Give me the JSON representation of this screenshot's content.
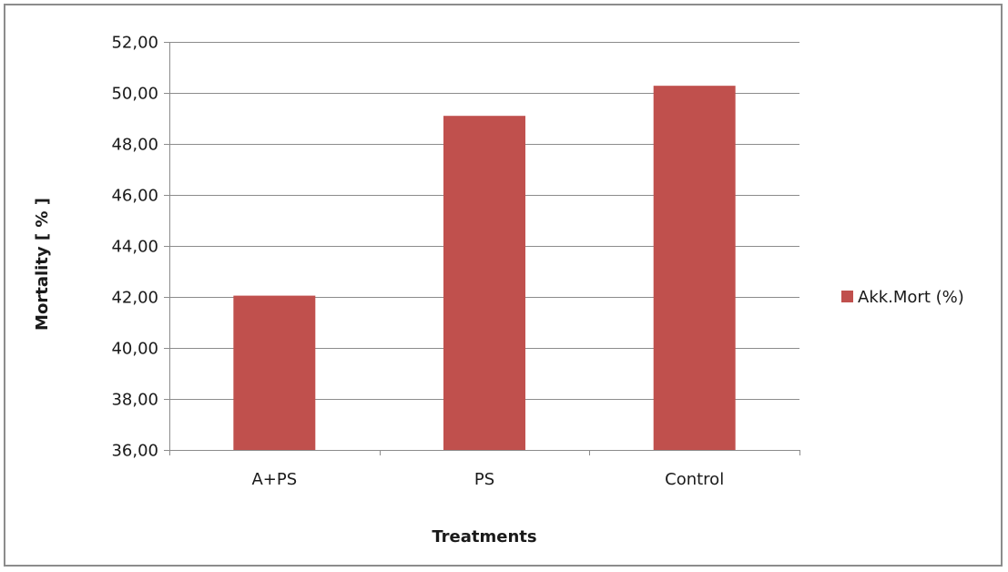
{
  "chart_data": {
    "type": "bar",
    "categories": [
      "A+PS",
      "PS",
      "Control"
    ],
    "series": [
      {
        "name": "Akk.Mort (%)",
        "values": [
          42.05,
          49.1,
          50.28
        ],
        "color": "#c0504d"
      }
    ],
    "xlabel": "Treatments",
    "ylabel": "Mortality [ % ]",
    "ylim": [
      36,
      52
    ],
    "ytick_step": 2,
    "ytick_labels": [
      "36,00",
      "38,00",
      "40,00",
      "42,00",
      "44,00",
      "46,00",
      "48,00",
      "50,00",
      "52,00"
    ],
    "grid": true,
    "grid_color": "#8c8c8c",
    "legend_position": "right"
  }
}
